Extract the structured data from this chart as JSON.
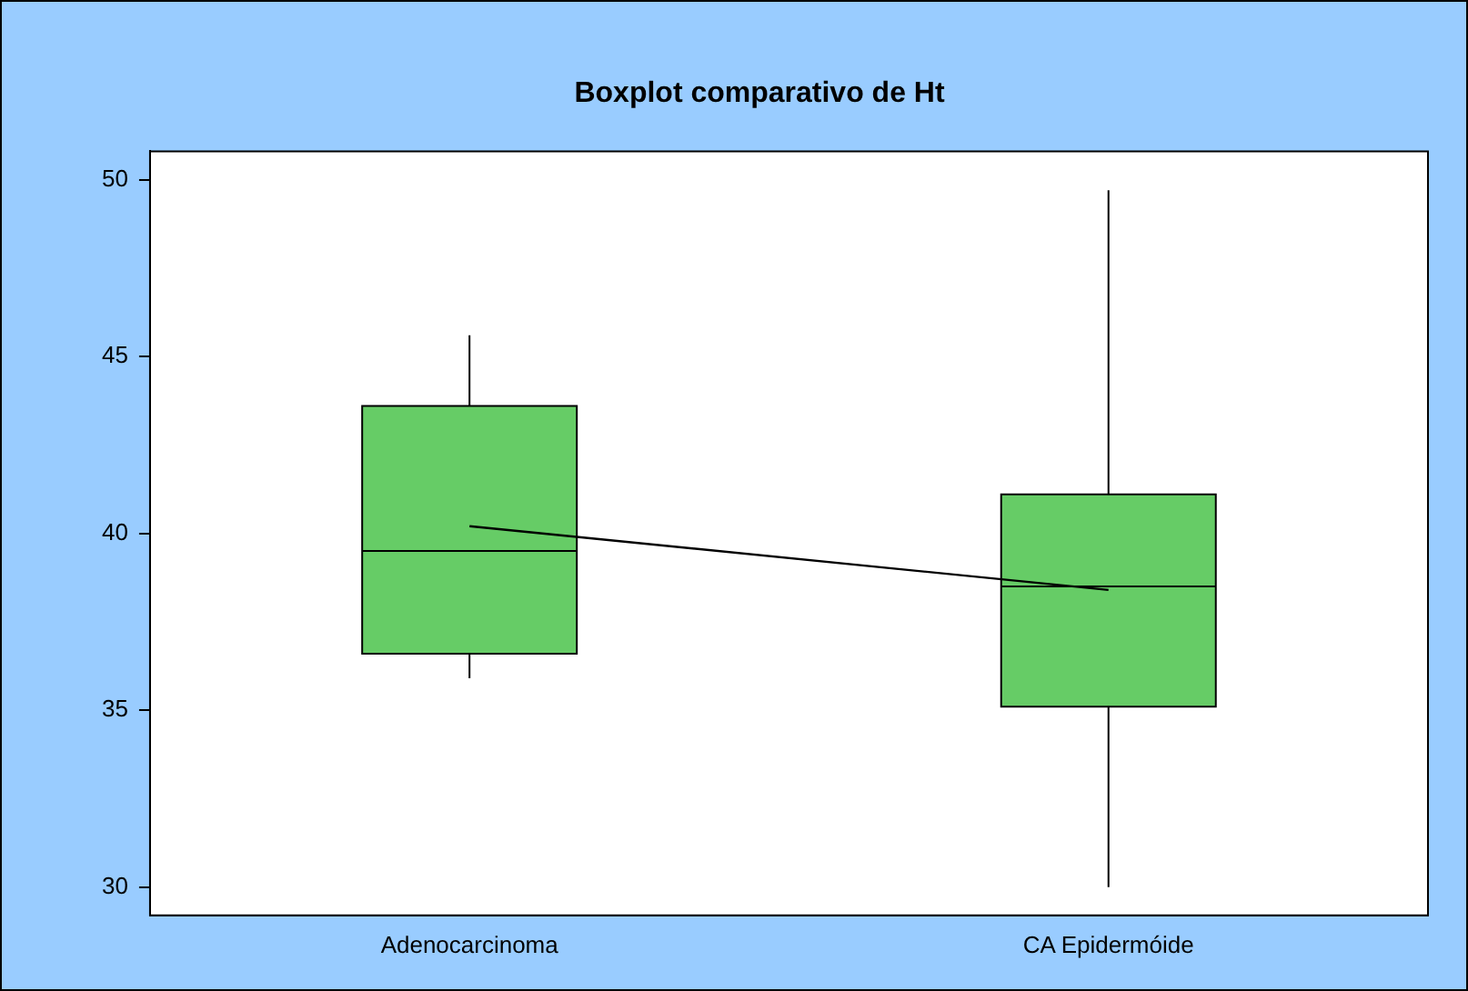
{
  "chart_data": {
    "type": "box",
    "title": "Boxplot comparativo de Ht",
    "categories": [
      "Adenocarcinoma",
      "CA Epidermóide"
    ],
    "series": [
      {
        "type": "box",
        "color": "#66cc66",
        "boxes": [
          {
            "low": 35.9,
            "q1": 36.6,
            "median": 39.5,
            "q3": 43.6,
            "high": 45.6
          },
          {
            "low": 30.0,
            "q1": 35.1,
            "median": 38.5,
            "q3": 41.1,
            "high": 49.7
          }
        ]
      },
      {
        "type": "line",
        "color": "#000000",
        "values": [
          40.2,
          38.4
        ]
      }
    ],
    "ylim": [
      29.2,
      50.8
    ],
    "yticks": [
      30,
      35,
      40,
      45,
      50
    ],
    "grid": false,
    "legend": false
  }
}
